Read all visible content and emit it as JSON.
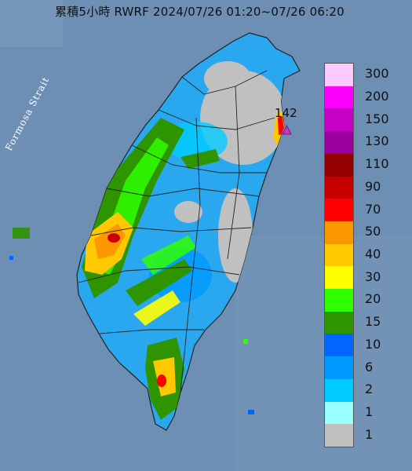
{
  "title": "累積5小時 RWRF 2024/07/26 01:20~07/26 06:20",
  "strait_label": "Formosa Strait",
  "max_marker": {
    "value": "142",
    "color": "#cc33cc"
  },
  "legend": {
    "levels": [
      {
        "label": "300",
        "color": "#fdc8fd"
      },
      {
        "label": "200",
        "color": "#fb00fb"
      },
      {
        "label": "150",
        "color": "#c700c7"
      },
      {
        "label": "130",
        "color": "#9c009c"
      },
      {
        "label": "110",
        "color": "#950000"
      },
      {
        "label": "90",
        "color": "#c90000"
      },
      {
        "label": "70",
        "color": "#fe0000"
      },
      {
        "label": "50",
        "color": "#fd9700"
      },
      {
        "label": "40",
        "color": "#ffc800"
      },
      {
        "label": "30",
        "color": "#ffff00"
      },
      {
        "label": "20",
        "color": "#2fff00"
      },
      {
        "label": "15",
        "color": "#2e9500"
      },
      {
        "label": "10",
        "color": "#0066ff"
      },
      {
        "label": "6",
        "color": "#0099ff"
      },
      {
        "label": "2",
        "color": "#00ccff"
      },
      {
        "label": "1",
        "color": "#99ffff"
      },
      {
        "label": "",
        "color": "#c0c0c0"
      }
    ]
  },
  "colors": {
    "sea": "#6d8fb4",
    "land_base": "#29a8ef",
    "no_rain": "#c0c0c0",
    "county_border": "#222222"
  }
}
